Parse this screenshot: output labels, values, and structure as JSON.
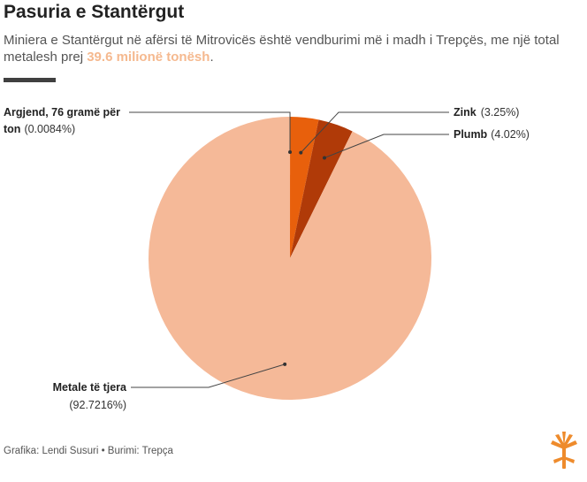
{
  "header": {
    "title": "Pasuria e Stantërgut",
    "subtitle_pre": "Miniera e Stantërgut në afërsi të Mitrovicës është vendburimi më i madh i Trepçës, me një total metalesh prej ",
    "subtitle_highlight": "39.6 milionë tonësh",
    "subtitle_post": "."
  },
  "footer": {
    "credit": "Grafika: Lendi Susuri • Burimi: Trepça"
  },
  "colors": {
    "accent": "#f5b98f",
    "rule": "#404040",
    "slice_argjend": "#f0a868",
    "slice_zink": "#e8600c",
    "slice_plumb": "#b03a08",
    "slice_other": "#f5b998",
    "logo": "#ee8b2c"
  },
  "chart_data": {
    "type": "pie",
    "slices": [
      {
        "name": "Argjend, 76 gramë për ton",
        "value": 0.0084,
        "pct_label": "(0.0084%)",
        "color": "#f0a868"
      },
      {
        "name": "Zink",
        "value": 3.25,
        "pct_label": "(3.25%)",
        "color": "#e8600c"
      },
      {
        "name": "Plumb",
        "value": 4.02,
        "pct_label": "(4.02%)",
        "color": "#b03a08"
      },
      {
        "name": "Metale të tjera",
        "value": 92.7216,
        "pct_label": "(92.7216%)",
        "color": "#f5b998"
      }
    ],
    "labels": {
      "argjend_line1": "Argjend, 76 gramë për",
      "argjend_line2": "ton",
      "argjend_pct": "(0.0084%)",
      "zink_name": "Zink",
      "zink_pct": "(3.25%)",
      "plumb_name": "Plumb",
      "plumb_pct": "(4.02%)",
      "other_name": "Metale të tjera",
      "other_pct": "(92.7216%)"
    },
    "start_angle": "12 o'clock",
    "direction": "clockwise",
    "legend": "none"
  },
  "icons": {
    "logo": "rfe-rl-logo"
  }
}
